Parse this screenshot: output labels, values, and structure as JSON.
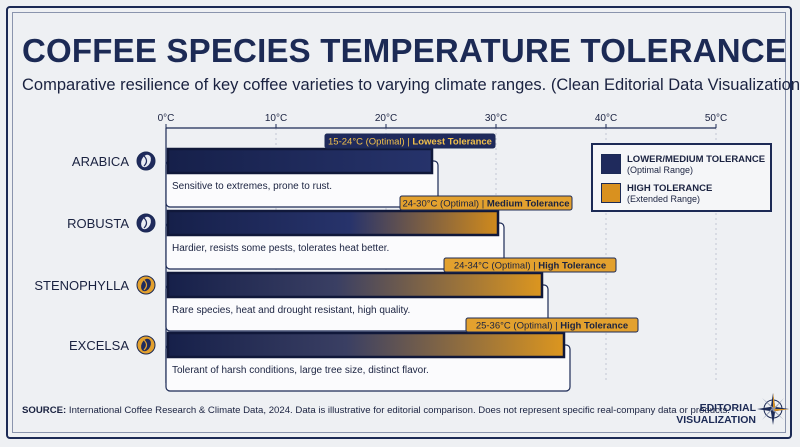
{
  "header": {
    "title": "COFFEE SPECIES TEMPERATURE TOLERANCE",
    "subtitle": "Comparative resilience of key coffee varieties to varying climate ranges. (Clean Editorial Data Visualization)"
  },
  "chart_data": {
    "type": "bar",
    "orientation": "horizontal",
    "xlim": [
      0,
      50
    ],
    "x_ticks": [
      "0°C",
      "10°C",
      "20°C",
      "30°C",
      "40°C",
      "50°C"
    ],
    "grid": true,
    "legend_position": "right",
    "categories": [
      "ARABICA",
      "ROBUSTA",
      "STENOPHYLLA",
      "EXCELSA"
    ],
    "bars": [
      {
        "name": "ARABICA",
        "end": 24,
        "tolerance": "low",
        "optimal_label": "15-24°C (Optimal)",
        "tolerance_label": "Lowest Tolerance",
        "description": "Sensitive to extremes, prone to rust."
      },
      {
        "name": "ROBUSTA",
        "end": 30,
        "tolerance": "medium",
        "optimal_label": "24-30°C (Optimal)",
        "tolerance_label": "Medium Tolerance",
        "description": "Hardier, resists some pests, tolerates heat better."
      },
      {
        "name": "STENOPHYLLA",
        "end": 34,
        "tolerance": "high",
        "optimal_label": "24-34°C (Optimal)",
        "tolerance_label": "High Tolerance",
        "description": "Rare species, heat and drought resistant, high quality."
      },
      {
        "name": "EXCELSA",
        "end": 36,
        "tolerance": "high",
        "optimal_label": "25-36°C (Optimal)",
        "tolerance_label": "High Tolerance",
        "description": "Tolerant of harsh conditions, large tree size, distinct flavor."
      }
    ],
    "legend": [
      {
        "label": "LOWER/MEDIUM TOLERANCE",
        "sublabel": "(Optimal Range)",
        "color": "#1f2a5c"
      },
      {
        "label": "HIGH TOLERANCE",
        "sublabel": "(Extended Range)",
        "color": "#d9911f"
      }
    ]
  },
  "colors": {
    "navy": "#1f2a5c",
    "gold": "#d9911f",
    "callout_dark": "#1f2a5c",
    "callout_gold": "#e3a12e"
  },
  "footer": {
    "source_label": "SOURCE:",
    "source_text": " International Coffee Research & Climate Data, 2024. Data is illustrative for editorial comparison. Does not represent specific real-company data or products.",
    "badge_line1": "EDITORIAL",
    "badge_line2": "VISUALIZATION",
    "badge_icon": "compass-rose-icon"
  }
}
